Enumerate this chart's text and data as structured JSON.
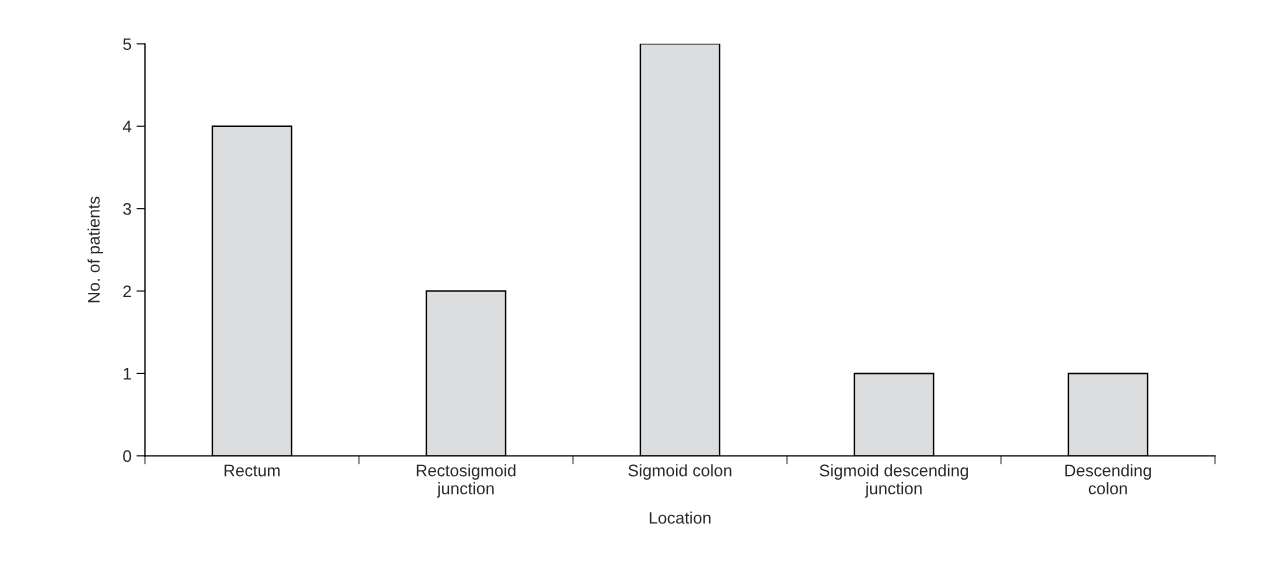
{
  "chart_data": {
    "type": "bar",
    "xlabel": "Location",
    "ylabel": "No. of patients",
    "categories": [
      "Rectum",
      "Rectosigmoid\njunction",
      "Sigmoid colon",
      "Sigmoid descending\njunction",
      "Descending\ncolon"
    ],
    "values": [
      4,
      2,
      5,
      1,
      1
    ],
    "color": "#dcdddf",
    "ylim": [
      0,
      5
    ],
    "yticks": [
      0,
      1,
      2,
      3,
      4,
      5
    ],
    "grid": false,
    "legend": false
  }
}
